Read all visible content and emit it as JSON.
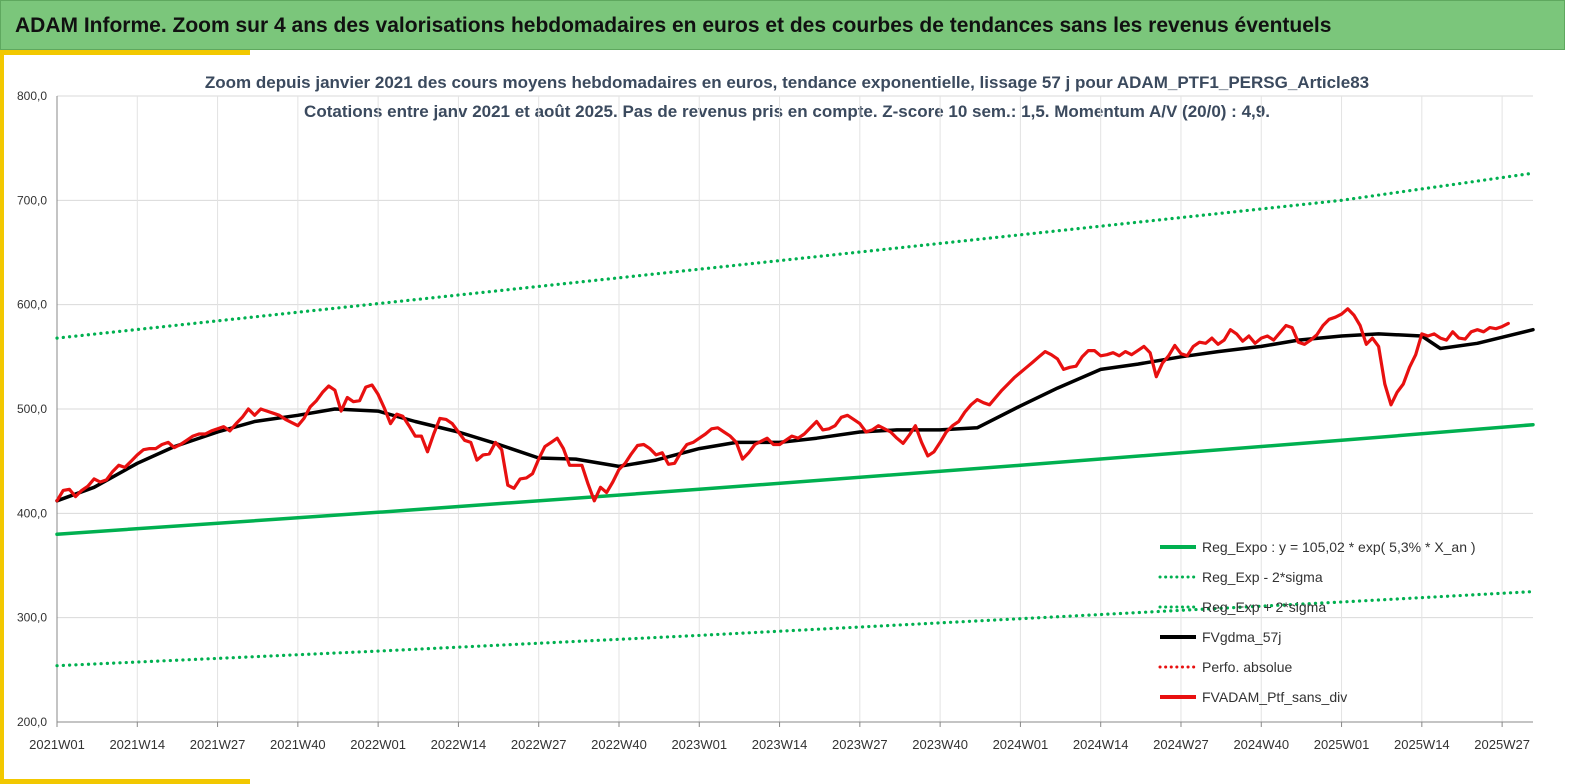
{
  "banner": {
    "title": "ADAM Informe. Zoom sur 4 ans des valorisations hebdomadaires en euros et des courbes de tendances sans les revenus éventuels"
  },
  "chart_data": {
    "type": "line",
    "title": "Zoom depuis janvier 2021 des cours moyens hebdomadaires  en euros, tendance exponentielle, lissage 57 j pour ADAM_PTF1_PERSG_Article83",
    "subtitle": "Cotations entre janv 2021 et août 2025. Pas de revenus pris en compte. Z-score 10 sem.: 1,5. Momentum A/V (20/0) : 4,9.",
    "ylim": [
      200,
      800
    ],
    "yticks": [
      "800,0",
      "700,0",
      "600,0",
      "500,0",
      "400,0",
      "300,0",
      "200,0"
    ],
    "ytick_values": [
      800,
      700,
      600,
      500,
      400,
      300,
      200
    ],
    "xtick_labels": [
      "2021W01",
      "2021W14",
      "2021W27",
      "2021W40",
      "2022W01",
      "2022W14",
      "2022W27",
      "2022W40",
      "2023W01",
      "2023W14",
      "2023W27",
      "2023W40",
      "2024W01",
      "2024W14",
      "2024W27",
      "2024W40",
      "2025W01",
      "2025W14",
      "2025W27"
    ],
    "xtick_weeks": [
      0,
      13,
      26,
      39,
      52,
      65,
      78,
      91,
      104,
      117,
      130,
      143,
      156,
      169,
      182,
      195,
      208,
      221,
      234
    ],
    "x_max_week": 239,
    "grid": true,
    "legend_position": "bottom-right",
    "legend": [
      {
        "label": "Reg_Expo : y = 105,02 * exp( 5,3% *  X_an )",
        "color": "#00b050",
        "style": "solid"
      },
      {
        "label": "Reg_Exp - 2*sigma",
        "color": "#00b050",
        "style": "dotted"
      },
      {
        "label": "Reg_Exp + 2*sigma",
        "color": "#00b050",
        "style": "dotted"
      },
      {
        "label": "FVgdma_57j",
        "color": "#000000",
        "style": "solid"
      },
      {
        "label": "Perfo. absolue",
        "color": "#e81010",
        "style": "dotted"
      },
      {
        "label": "FVADAM_Ptf_sans_div",
        "color": "#e81010",
        "style": "solid"
      }
    ],
    "series": [
      {
        "name": "Reg_Exp + 2*sigma",
        "color": "#00b050",
        "style": "dotted",
        "points": [
          [
            0,
            568
          ],
          [
            52,
            601
          ],
          [
            104,
            634
          ],
          [
            156,
            667
          ],
          [
            208,
            700
          ],
          [
            239,
            726
          ]
        ]
      },
      {
        "name": "Reg_Expo : y = 105,02 * exp( 5,3% *  X_an )",
        "color": "#00b050",
        "style": "solid",
        "points": [
          [
            0,
            380
          ],
          [
            52,
            401
          ],
          [
            104,
            423
          ],
          [
            156,
            446
          ],
          [
            208,
            470
          ],
          [
            239,
            485
          ]
        ]
      },
      {
        "name": "Reg_Exp - 2*sigma",
        "color": "#00b050",
        "style": "dotted",
        "points": [
          [
            0,
            254
          ],
          [
            52,
            268
          ],
          [
            104,
            283
          ],
          [
            156,
            299
          ],
          [
            208,
            315
          ],
          [
            239,
            325
          ]
        ]
      },
      {
        "name": "FVgdma_57j",
        "color": "#000000",
        "style": "solid",
        "points": [
          [
            0,
            412
          ],
          [
            6,
            425
          ],
          [
            13,
            448
          ],
          [
            19,
            464
          ],
          [
            26,
            478
          ],
          [
            32,
            488
          ],
          [
            39,
            494
          ],
          [
            45,
            500
          ],
          [
            52,
            498
          ],
          [
            58,
            488
          ],
          [
            65,
            478
          ],
          [
            71,
            467
          ],
          [
            78,
            453
          ],
          [
            84,
            452
          ],
          [
            91,
            445
          ],
          [
            97,
            451
          ],
          [
            104,
            462
          ],
          [
            110,
            468
          ],
          [
            117,
            468
          ],
          [
            123,
            472
          ],
          [
            130,
            478
          ],
          [
            136,
            480
          ],
          [
            143,
            480
          ],
          [
            149,
            482
          ],
          [
            156,
            503
          ],
          [
            162,
            520
          ],
          [
            169,
            538
          ],
          [
            175,
            543
          ],
          [
            182,
            550
          ],
          [
            188,
            555
          ],
          [
            195,
            560
          ],
          [
            201,
            566
          ],
          [
            208,
            570
          ],
          [
            214,
            572
          ],
          [
            221,
            570
          ],
          [
            224,
            558
          ],
          [
            230,
            563
          ],
          [
            239,
            576
          ]
        ]
      },
      {
        "name": "FVADAM_Ptf_sans_div",
        "color": "#e81010",
        "style": "solid",
        "points": [
          [
            0,
            412
          ],
          [
            1,
            422
          ],
          [
            2,
            423
          ],
          [
            3,
            416
          ],
          [
            4,
            422
          ],
          [
            5,
            426
          ],
          [
            6,
            433
          ],
          [
            7,
            430
          ],
          [
            8,
            432
          ],
          [
            9,
            440
          ],
          [
            10,
            446
          ],
          [
            11,
            444
          ],
          [
            12,
            450
          ],
          [
            13,
            456
          ],
          [
            14,
            461
          ],
          [
            15,
            462
          ],
          [
            16,
            462
          ],
          [
            17,
            466
          ],
          [
            18,
            468
          ],
          [
            19,
            463
          ],
          [
            20,
            466
          ],
          [
            21,
            470
          ],
          [
            22,
            474
          ],
          [
            23,
            476
          ],
          [
            24,
            476
          ],
          [
            25,
            479
          ],
          [
            26,
            481
          ],
          [
            27,
            483
          ],
          [
            28,
            479
          ],
          [
            29,
            486
          ],
          [
            30,
            492
          ],
          [
            31,
            500
          ],
          [
            32,
            494
          ],
          [
            33,
            500
          ],
          [
            34,
            498
          ],
          [
            35,
            496
          ],
          [
            36,
            494
          ],
          [
            37,
            490
          ],
          [
            38,
            487
          ],
          [
            39,
            484
          ],
          [
            40,
            491
          ],
          [
            41,
            502
          ],
          [
            42,
            508
          ],
          [
            43,
            516
          ],
          [
            44,
            522
          ],
          [
            45,
            518
          ],
          [
            46,
            498
          ],
          [
            47,
            511
          ],
          [
            48,
            507
          ],
          [
            49,
            508
          ],
          [
            50,
            521
          ],
          [
            51,
            523
          ],
          [
            52,
            514
          ],
          [
            53,
            501
          ],
          [
            54,
            486
          ],
          [
            55,
            495
          ],
          [
            56,
            493
          ],
          [
            57,
            484
          ],
          [
            58,
            474
          ],
          [
            59,
            474
          ],
          [
            60,
            459
          ],
          [
            61,
            476
          ],
          [
            62,
            491
          ],
          [
            63,
            490
          ],
          [
            64,
            486
          ],
          [
            65,
            478
          ],
          [
            66,
            470
          ],
          [
            67,
            468
          ],
          [
            68,
            451
          ],
          [
            69,
            456
          ],
          [
            70,
            457
          ],
          [
            71,
            468
          ],
          [
            72,
            461
          ],
          [
            73,
            427
          ],
          [
            74,
            424
          ],
          [
            75,
            433
          ],
          [
            76,
            434
          ],
          [
            77,
            438
          ],
          [
            78,
            452
          ],
          [
            79,
            464
          ],
          [
            80,
            468
          ],
          [
            81,
            472
          ],
          [
            82,
            462
          ],
          [
            83,
            446
          ],
          [
            84,
            446
          ],
          [
            85,
            446
          ],
          [
            86,
            428
          ],
          [
            87,
            412
          ],
          [
            88,
            425
          ],
          [
            89,
            420
          ],
          [
            90,
            430
          ],
          [
            91,
            442
          ],
          [
            92,
            448
          ],
          [
            93,
            457
          ],
          [
            94,
            465
          ],
          [
            95,
            466
          ],
          [
            96,
            462
          ],
          [
            97,
            456
          ],
          [
            98,
            458
          ],
          [
            99,
            447
          ],
          [
            100,
            448
          ],
          [
            101,
            458
          ],
          [
            102,
            466
          ],
          [
            103,
            468
          ],
          [
            104,
            472
          ],
          [
            105,
            476
          ],
          [
            106,
            481
          ],
          [
            107,
            482
          ],
          [
            108,
            478
          ],
          [
            109,
            474
          ],
          [
            110,
            468
          ],
          [
            111,
            452
          ],
          [
            112,
            458
          ],
          [
            113,
            466
          ],
          [
            114,
            469
          ],
          [
            115,
            472
          ],
          [
            116,
            466
          ],
          [
            117,
            466
          ],
          [
            118,
            470
          ],
          [
            119,
            474
          ],
          [
            120,
            472
          ],
          [
            121,
            476
          ],
          [
            122,
            482
          ],
          [
            123,
            488
          ],
          [
            124,
            480
          ],
          [
            125,
            481
          ],
          [
            126,
            484
          ],
          [
            127,
            492
          ],
          [
            128,
            494
          ],
          [
            129,
            490
          ],
          [
            130,
            486
          ],
          [
            131,
            478
          ],
          [
            132,
            480
          ],
          [
            133,
            484
          ],
          [
            134,
            481
          ],
          [
            135,
            478
          ],
          [
            136,
            472
          ],
          [
            137,
            467
          ],
          [
            138,
            475
          ],
          [
            139,
            484
          ],
          [
            140,
            468
          ],
          [
            141,
            455
          ],
          [
            142,
            459
          ],
          [
            143,
            468
          ],
          [
            144,
            478
          ],
          [
            145,
            484
          ],
          [
            146,
            488
          ],
          [
            147,
            497
          ],
          [
            148,
            504
          ],
          [
            149,
            509
          ],
          [
            150,
            506
          ],
          [
            151,
            504
          ],
          [
            152,
            511
          ],
          [
            153,
            518
          ],
          [
            154,
            524
          ],
          [
            155,
            530
          ],
          [
            156,
            535
          ],
          [
            157,
            540
          ],
          [
            158,
            545
          ],
          [
            159,
            550
          ],
          [
            160,
            555
          ],
          [
            161,
            552
          ],
          [
            162,
            548
          ],
          [
            163,
            538
          ],
          [
            164,
            540
          ],
          [
            165,
            541
          ],
          [
            166,
            550
          ],
          [
            167,
            556
          ],
          [
            168,
            556
          ],
          [
            169,
            551
          ],
          [
            170,
            552
          ],
          [
            171,
            554
          ],
          [
            172,
            551
          ],
          [
            173,
            555
          ],
          [
            174,
            552
          ],
          [
            175,
            556
          ],
          [
            176,
            560
          ],
          [
            177,
            554
          ],
          [
            178,
            531
          ],
          [
            179,
            544
          ],
          [
            180,
            551
          ],
          [
            181,
            561
          ],
          [
            182,
            553
          ],
          [
            183,
            551
          ],
          [
            184,
            560
          ],
          [
            185,
            564
          ],
          [
            186,
            563
          ],
          [
            187,
            568
          ],
          [
            188,
            562
          ],
          [
            189,
            566
          ],
          [
            190,
            576
          ],
          [
            191,
            572
          ],
          [
            192,
            565
          ],
          [
            193,
            570
          ],
          [
            194,
            563
          ],
          [
            195,
            568
          ],
          [
            196,
            570
          ],
          [
            197,
            566
          ],
          [
            198,
            573
          ],
          [
            199,
            580
          ],
          [
            200,
            578
          ],
          [
            201,
            564
          ],
          [
            202,
            562
          ],
          [
            203,
            566
          ],
          [
            204,
            571
          ],
          [
            205,
            580
          ],
          [
            206,
            586
          ],
          [
            207,
            588
          ],
          [
            208,
            591
          ],
          [
            209,
            596
          ],
          [
            210,
            590
          ],
          [
            211,
            580
          ],
          [
            212,
            562
          ],
          [
            213,
            568
          ],
          [
            214,
            560
          ],
          [
            215,
            524
          ],
          [
            216,
            504
          ],
          [
            217,
            516
          ],
          [
            218,
            524
          ],
          [
            219,
            540
          ],
          [
            220,
            552
          ],
          [
            221,
            572
          ],
          [
            222,
            570
          ],
          [
            223,
            572
          ],
          [
            224,
            568
          ],
          [
            225,
            566
          ],
          [
            226,
            574
          ],
          [
            227,
            568
          ],
          [
            228,
            567
          ],
          [
            229,
            574
          ],
          [
            230,
            576
          ],
          [
            231,
            574
          ],
          [
            232,
            578
          ],
          [
            233,
            577
          ],
          [
            234,
            579
          ],
          [
            235,
            582
          ]
        ]
      }
    ]
  }
}
